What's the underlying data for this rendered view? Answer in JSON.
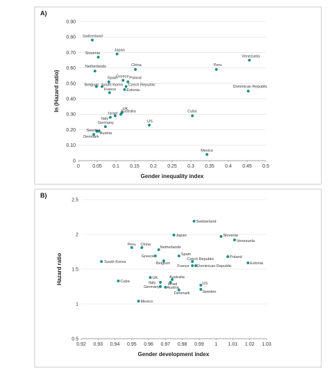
{
  "chart_data": [
    {
      "panel": "A)",
      "type": "scatter",
      "xlabel": "Gender inequality index",
      "ylabel": "ln (Hazard ratio)",
      "xlim": [
        0,
        0.5
      ],
      "ylim": [
        0,
        0.9
      ],
      "xticks": [
        "0",
        "0.05",
        "0.1",
        "0.15",
        "0.2",
        "0.25",
        "0.3",
        "0.35",
        "0.4",
        "0.45",
        "0.5"
      ],
      "yticks": [
        "0",
        "0.10",
        "0.20",
        "0.30",
        "0.40",
        "0.50",
        "0.60",
        "0.70",
        "0.80",
        "0.90"
      ],
      "grid": true,
      "color": "#1f8f87",
      "points": [
        {
          "label": "Switzerland",
          "x": 0.037,
          "y": 0.78
        },
        {
          "label": "Slovenia",
          "x": 0.053,
          "y": 0.67
        },
        {
          "label": "Japan",
          "x": 0.103,
          "y": 0.69
        },
        {
          "label": "Netherlands",
          "x": 0.044,
          "y": 0.58
        },
        {
          "label": "China",
          "x": 0.152,
          "y": 0.59
        },
        {
          "label": "Peru",
          "x": 0.368,
          "y": 0.59
        },
        {
          "label": "Venezuela",
          "x": 0.456,
          "y": 0.65
        },
        {
          "label": "Spain",
          "x": 0.081,
          "y": 0.51
        },
        {
          "label": "Greece",
          "x": 0.119,
          "y": 0.52
        },
        {
          "label": "Poland",
          "x": 0.132,
          "y": 0.51
        },
        {
          "label": "Belgium",
          "x": 0.048,
          "y": 0.48
        },
        {
          "label": "South Korea",
          "x": 0.063,
          "y": 0.48
        },
        {
          "label": "Czech Republic",
          "x": 0.127,
          "y": 0.48
        },
        {
          "label": "Estonia",
          "x": 0.123,
          "y": 0.46
        },
        {
          "label": "France",
          "x": 0.083,
          "y": 0.44
        },
        {
          "label": "Dominican Republic",
          "x": 0.453,
          "y": 0.45
        },
        {
          "label": "UK",
          "x": 0.116,
          "y": 0.31
        },
        {
          "label": "Australia",
          "x": 0.113,
          "y": 0.3
        },
        {
          "label": "Israel",
          "x": 0.098,
          "y": 0.29
        },
        {
          "label": "Italy",
          "x": 0.085,
          "y": 0.28
        },
        {
          "label": "Cuba",
          "x": 0.304,
          "y": 0.29
        },
        {
          "label": "Germany",
          "x": 0.072,
          "y": 0.22
        },
        {
          "label": "US",
          "x": 0.189,
          "y": 0.23
        },
        {
          "label": "Sweden",
          "x": 0.049,
          "y": 0.19
        },
        {
          "label": "Austria",
          "x": 0.055,
          "y": 0.19
        },
        {
          "label": "Denmark",
          "x": 0.041,
          "y": 0.17
        },
        {
          "label": "Mexico",
          "x": 0.343,
          "y": 0.04
        }
      ]
    },
    {
      "panel": "B)",
      "type": "scatter",
      "xlabel": "Gender development index",
      "ylabel": "Hazard ratio",
      "xlim": [
        0.92,
        1.03
      ],
      "ylim": [
        0.5,
        2.5
      ],
      "xticks": [
        "0.92",
        "0.93",
        "0.94",
        "0.95",
        "0.96",
        "0.97",
        "0.98",
        "0.99",
        "1",
        "1.01",
        "1.02",
        "1.03"
      ],
      "yticks": [
        "0.5",
        "1",
        "1.5",
        "2",
        "2.5"
      ],
      "grid": true,
      "color": "#1f8f87",
      "points": [
        {
          "label": "Switzerland",
          "x": 0.987,
          "y": 2.19
        },
        {
          "label": "Slovenia",
          "x": 1.003,
          "y": 1.97
        },
        {
          "label": "Venezuela",
          "x": 1.011,
          "y": 1.92
        },
        {
          "label": "Japan",
          "x": 0.975,
          "y": 1.99
        },
        {
          "label": "Peru",
          "x": 0.95,
          "y": 1.81
        },
        {
          "label": "China",
          "x": 0.956,
          "y": 1.81
        },
        {
          "label": "Netherlands",
          "x": 0.966,
          "y": 1.78
        },
        {
          "label": "Greece",
          "x": 0.964,
          "y": 1.69
        },
        {
          "label": "Spain",
          "x": 0.978,
          "y": 1.69
        },
        {
          "label": "Belgium",
          "x": 0.969,
          "y": 1.62
        },
        {
          "label": "Czech Republic",
          "x": 0.986,
          "y": 1.61
        },
        {
          "label": "Poland",
          "x": 1.007,
          "y": 1.68
        },
        {
          "label": "South Korea",
          "x": 0.932,
          "y": 1.61
        },
        {
          "label": "France",
          "x": 0.986,
          "y": 1.55
        },
        {
          "label": "Dominican Republic",
          "x": 0.988,
          "y": 1.55
        },
        {
          "label": "Estonia",
          "x": 1.019,
          "y": 1.59
        },
        {
          "label": "UK",
          "x": 0.961,
          "y": 1.38
        },
        {
          "label": "Cuba",
          "x": 0.942,
          "y": 1.33
        },
        {
          "label": "Australia",
          "x": 0.974,
          "y": 1.35
        },
        {
          "label": "Italy",
          "x": 0.967,
          "y": 1.31
        },
        {
          "label": "Israel",
          "x": 0.973,
          "y": 1.31
        },
        {
          "label": "Germany",
          "x": 0.967,
          "y": 1.25
        },
        {
          "label": "Austria",
          "x": 0.97,
          "y": 1.24
        },
        {
          "label": "Denmark",
          "x": 0.978,
          "y": 1.2
        },
        {
          "label": "US",
          "x": 0.991,
          "y": 1.27
        },
        {
          "label": "Sweden",
          "x": 0.991,
          "y": 1.21
        },
        {
          "label": "Mexico",
          "x": 0.954,
          "y": 1.04
        }
      ]
    }
  ]
}
